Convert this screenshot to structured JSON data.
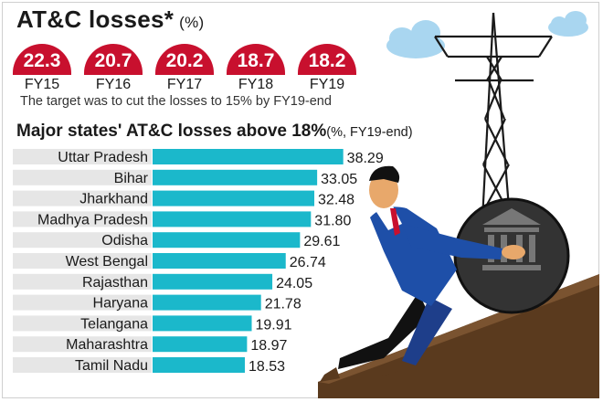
{
  "title": {
    "main": "AT&C losses*",
    "unit": "(%)"
  },
  "trend": {
    "items": [
      {
        "value": "22.3",
        "year": "FY15"
      },
      {
        "value": "20.7",
        "year": "FY16"
      },
      {
        "value": "20.2",
        "year": "FY17"
      },
      {
        "value": "18.7",
        "year": "FY18"
      },
      {
        "value": "18.2",
        "year": "FY19"
      }
    ],
    "note": "The target was to cut the losses to 15% by FY19-end"
  },
  "subtitle": {
    "main": "Major states' AT&C losses above 18%",
    "unit": "(%, FY19-end)"
  },
  "chart_data": {
    "type": "bar",
    "orientation": "horizontal",
    "title": "Major states' AT&C losses above 18%",
    "categories": [
      "Uttar Pradesh",
      "Bihar",
      "Jharkhand",
      "Madhya Pradesh",
      "Odisha",
      "West Bengal",
      "Rajasthan",
      "Haryana",
      "Telangana",
      "Maharashtra",
      "Tamil Nadu"
    ],
    "values": [
      38.29,
      33.05,
      32.48,
      31.8,
      29.61,
      26.74,
      24.05,
      21.78,
      19.91,
      18.97,
      18.53
    ],
    "labels": [
      "38.29",
      "33.05",
      "32.48",
      "31.80",
      "29.61",
      "26.74",
      "24.05",
      "21.78",
      "19.91",
      "18.97",
      "18.53"
    ],
    "xlim": [
      0,
      40
    ],
    "grid": false,
    "colors": {
      "bar": "#1bb8cb",
      "label_band": "#e6e6e6",
      "pill": "#c8102e"
    }
  }
}
